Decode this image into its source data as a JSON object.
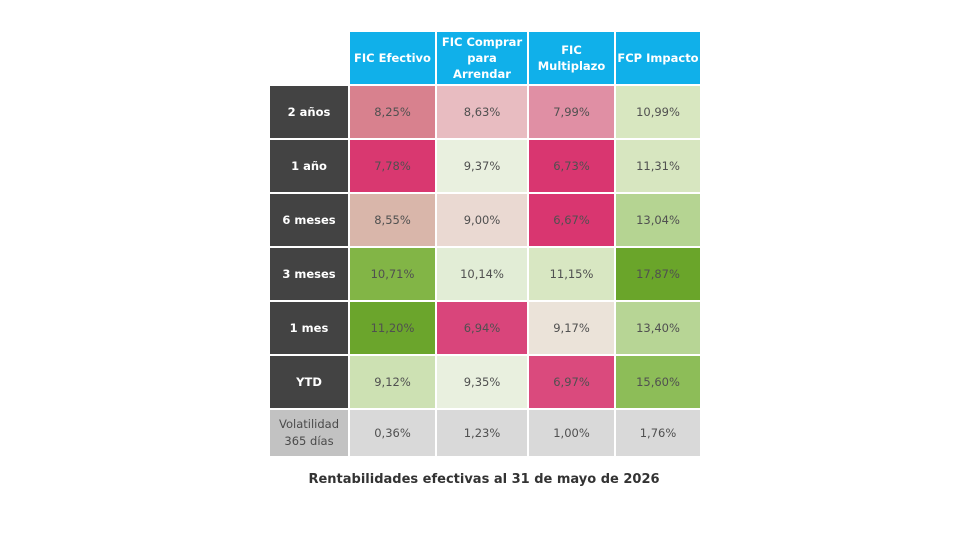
{
  "chart_data": {
    "type": "table",
    "title": "Rentabilidades efectivas al 31 de mayo de 2026",
    "columns": [
      {
        "id": "c0",
        "label_line1": "FIC Efectivo",
        "label_line2": ""
      },
      {
        "id": "c1",
        "label_line1": "FIC Comprar",
        "label_line2": "para Arrendar"
      },
      {
        "id": "c2",
        "label_line1": "FIC",
        "label_line2": "Multiplazo"
      },
      {
        "id": "c3",
        "label_line1": "FCP Impacto",
        "label_line2": ""
      }
    ],
    "rows": [
      {
        "label": "2 años",
        "values": [
          "8,25%",
          "8,63%",
          "7,99%",
          "10,99%"
        ],
        "colors": [
          "#d8818e",
          "#e8bcc1",
          "#e08fa4",
          "#d8e7c0"
        ]
      },
      {
        "label": "1 año",
        "values": [
          "7,78%",
          "9,37%",
          "6,73%",
          "11,31%"
        ],
        "colors": [
          "#d93870",
          "#e9f0df",
          "#d93670",
          "#d7e6c0"
        ]
      },
      {
        "label": "6 meses",
        "values": [
          "8,55%",
          "9,00%",
          "6,67%",
          "13,04%"
        ],
        "colors": [
          "#d9b6aa",
          "#ead9d2",
          "#d93670",
          "#b5d492"
        ]
      },
      {
        "label": "3 meses",
        "values": [
          "10,71%",
          "10,14%",
          "11,15%",
          "17,87%"
        ],
        "colors": [
          "#82b546",
          "#e2edd6",
          "#d8e7c2",
          "#6aa52a"
        ]
      },
      {
        "label": "1 mes",
        "values": [
          "11,20%",
          "6,94%",
          "9,17%",
          "13,40%"
        ],
        "colors": [
          "#6ba52c",
          "#d9457b",
          "#ebe3d9",
          "#b7d595"
        ]
      },
      {
        "label": "YTD",
        "values": [
          "9,12%",
          "9,35%",
          "6,97%",
          "15,60%"
        ],
        "colors": [
          "#cde1b3",
          "#e9f0df",
          "#da4a7d",
          "#8dbd58"
        ]
      }
    ],
    "footer_row": {
      "label_line1": "Volatilidad",
      "label_line2": "365 días",
      "values": [
        "0,36%",
        "1,23%",
        "1,00%",
        "1,76%"
      ]
    }
  }
}
